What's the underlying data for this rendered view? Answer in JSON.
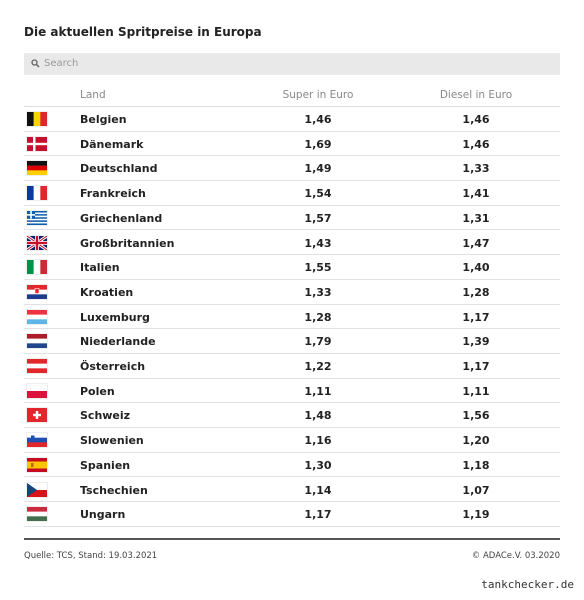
{
  "header": {
    "title": "Die aktuellen Spritpreise in Europa",
    "search_placeholder": "Search"
  },
  "table": {
    "columns": [
      "Land",
      "Super in Euro",
      "Diesel in Euro"
    ],
    "rows": [
      [
        "Belgien",
        "1,46",
        "1,46"
      ],
      [
        "Dänemark",
        "1,69",
        "1,46"
      ],
      [
        "Deutschland",
        "1,49",
        "1,33"
      ],
      [
        "Frankreich",
        "1,54",
        "1,41"
      ],
      [
        "Griechenland",
        "1,57",
        "1,31"
      ],
      [
        "Großbritannien",
        "1,43",
        "1,47"
      ],
      [
        "Italien",
        "1,55",
        "1,40"
      ],
      [
        "Kroatien",
        "1,33",
        "1,28"
      ],
      [
        "Luxemburg",
        "1,28",
        "1,17"
      ],
      [
        "Niederlande",
        "1,79",
        "1,39"
      ],
      [
        "Österreich",
        "1,22",
        "1,17"
      ],
      [
        "Polen",
        "1,11",
        "1,11"
      ],
      [
        "Schweiz",
        "1,48",
        "1,56"
      ],
      [
        "Slowenien",
        "1,16",
        "1,20"
      ],
      [
        "Spanien",
        "1,30",
        "1,18"
      ],
      [
        "Tschechien",
        "1,14",
        "1,07"
      ],
      [
        "Ungarn",
        "1,17",
        "1,19"
      ]
    ]
  },
  "footer": {
    "source": "Quelle: TCS, Stand: 19.03.2021",
    "copyright": "© ADACe.V. 03.2020",
    "watermark": "tankchecker.de"
  }
}
